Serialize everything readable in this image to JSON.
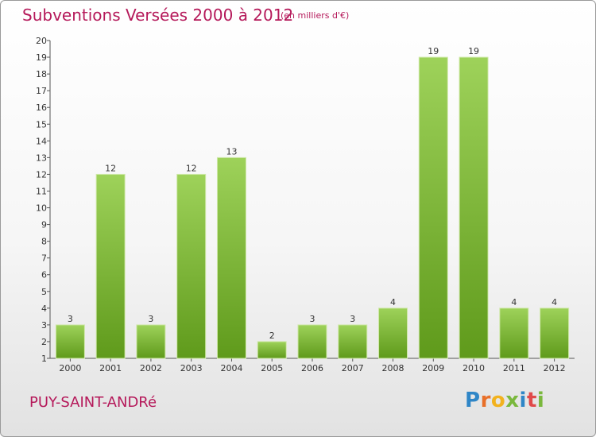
{
  "header": {
    "title": "Subventions Versées 2000 à 2012",
    "unit_note": "(en milliers d'€)"
  },
  "footer": {
    "place_name": "PUY-SAINT-ANDRé",
    "brand": "Proxiti"
  },
  "colors": {
    "title": "#b5195a",
    "bar_top": "#9ed25a",
    "bar_bottom": "#5f9a1b"
  },
  "chart_data": {
    "type": "bar",
    "title": "Subventions Versées 2000 à 2012",
    "subtitle": "(en milliers d'€)",
    "categories": [
      "2000",
      "2001",
      "2002",
      "2003",
      "2004",
      "2005",
      "2006",
      "2007",
      "2008",
      "2009",
      "2010",
      "2011",
      "2012"
    ],
    "values": [
      3,
      12,
      3,
      12,
      13,
      2,
      3,
      3,
      4,
      19,
      19,
      4,
      4
    ],
    "ylim": [
      1,
      20
    ],
    "yticks": [
      1,
      2,
      3,
      4,
      5,
      6,
      7,
      8,
      9,
      10,
      11,
      12,
      13,
      14,
      15,
      16,
      17,
      18,
      19,
      20
    ],
    "grid": false,
    "data_labels": true
  }
}
